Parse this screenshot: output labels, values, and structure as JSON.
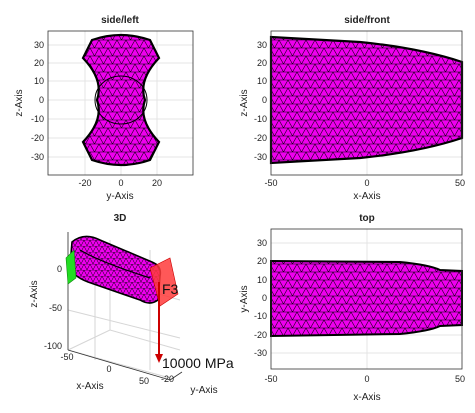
{
  "panels": {
    "side_left": {
      "title": "side/left",
      "xlabel": "y-Axis",
      "ylabel": "z-Axis",
      "xticks": [
        "-20",
        "0",
        "20"
      ],
      "yticks": [
        "30",
        "20",
        "10",
        "0",
        "-10",
        "-20",
        "-30"
      ]
    },
    "side_front": {
      "title": "side/front",
      "xlabel": "x-Axis",
      "ylabel": "z-Axis",
      "xticks": [
        "-50",
        "0",
        "50"
      ],
      "yticks": [
        "30",
        "20",
        "10",
        "0",
        "-10",
        "-20",
        "-30"
      ]
    },
    "view_3d": {
      "title": "3D",
      "xlabel": "x-Axis",
      "ylabel": "y-Axis",
      "zlabel": "z-Axis",
      "xticks": [
        "-50",
        "0",
        "50"
      ],
      "yticks": [
        "-20"
      ],
      "zticks": [
        "0",
        "-50",
        "-100"
      ],
      "force_label": "F3",
      "stress_label": "10000 MPa"
    },
    "top": {
      "title": "top",
      "xlabel": "x-Axis",
      "ylabel": "y-Axis",
      "xticks": [
        "-50",
        "0",
        "50"
      ],
      "yticks": [
        "30",
        "20",
        "10",
        "0",
        "-10",
        "-20",
        "-30"
      ]
    }
  },
  "colors": {
    "mesh_fill": "#ee00ee",
    "mesh_edge": "#000000",
    "support": "#22dd22",
    "load_plane": "#ff3b3b",
    "arrow": "#cc0000",
    "grid": "#e4e4e4",
    "axis": "#333333"
  }
}
